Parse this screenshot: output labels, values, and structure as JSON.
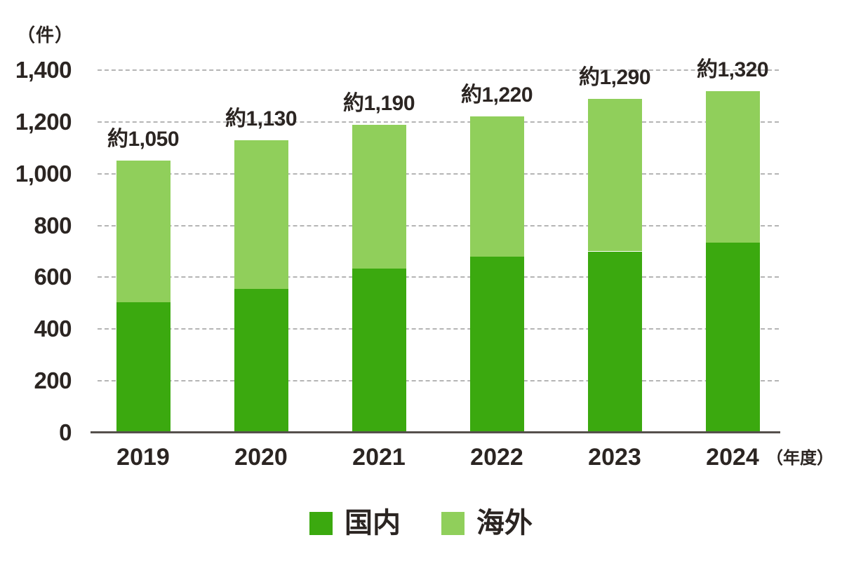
{
  "unit_label": "（件）",
  "axis_suffix": "（年度）",
  "colors": {
    "domestic": "#3BA90F",
    "overseas": "#90CF5B",
    "grid": "#B5B5B5",
    "axis": "#55504C",
    "text": "#2B2522",
    "background": "#FFFFFF"
  },
  "legend": {
    "position": "bottom",
    "items": [
      {
        "label": "国内",
        "color": "#3BA90F"
      },
      {
        "label": "海外",
        "color": "#90CF5B"
      }
    ]
  },
  "chart_data": {
    "type": "bar",
    "stacked": true,
    "title": "",
    "ylabel": "（件）",
    "xlabel_suffix": "（年度）",
    "categories": [
      "2019",
      "2020",
      "2021",
      "2022",
      "2023",
      "2024"
    ],
    "series": [
      {
        "name": "国内",
        "color": "#3BA90F",
        "values": [
          505,
          555,
          635,
          680,
          700,
          735
        ]
      },
      {
        "name": "海外",
        "color": "#90CF5B",
        "values": [
          545,
          575,
          555,
          540,
          590,
          585
        ]
      }
    ],
    "totals": [
      1050,
      1130,
      1190,
      1220,
      1290,
      1320
    ],
    "total_labels": [
      "約1,050",
      "約1,130",
      "約1,190",
      "約1,220",
      "約1,290",
      "約1,320"
    ],
    "ylim": [
      0,
      1400
    ],
    "yticks": [
      0,
      200,
      400,
      600,
      800,
      1000,
      1200,
      1400
    ],
    "ytick_labels": [
      "0",
      "200",
      "400",
      "600",
      "800",
      "1,000",
      "1,200",
      "1,400"
    ],
    "grid": "horizontal-dashed",
    "legend_position": "bottom-center"
  }
}
